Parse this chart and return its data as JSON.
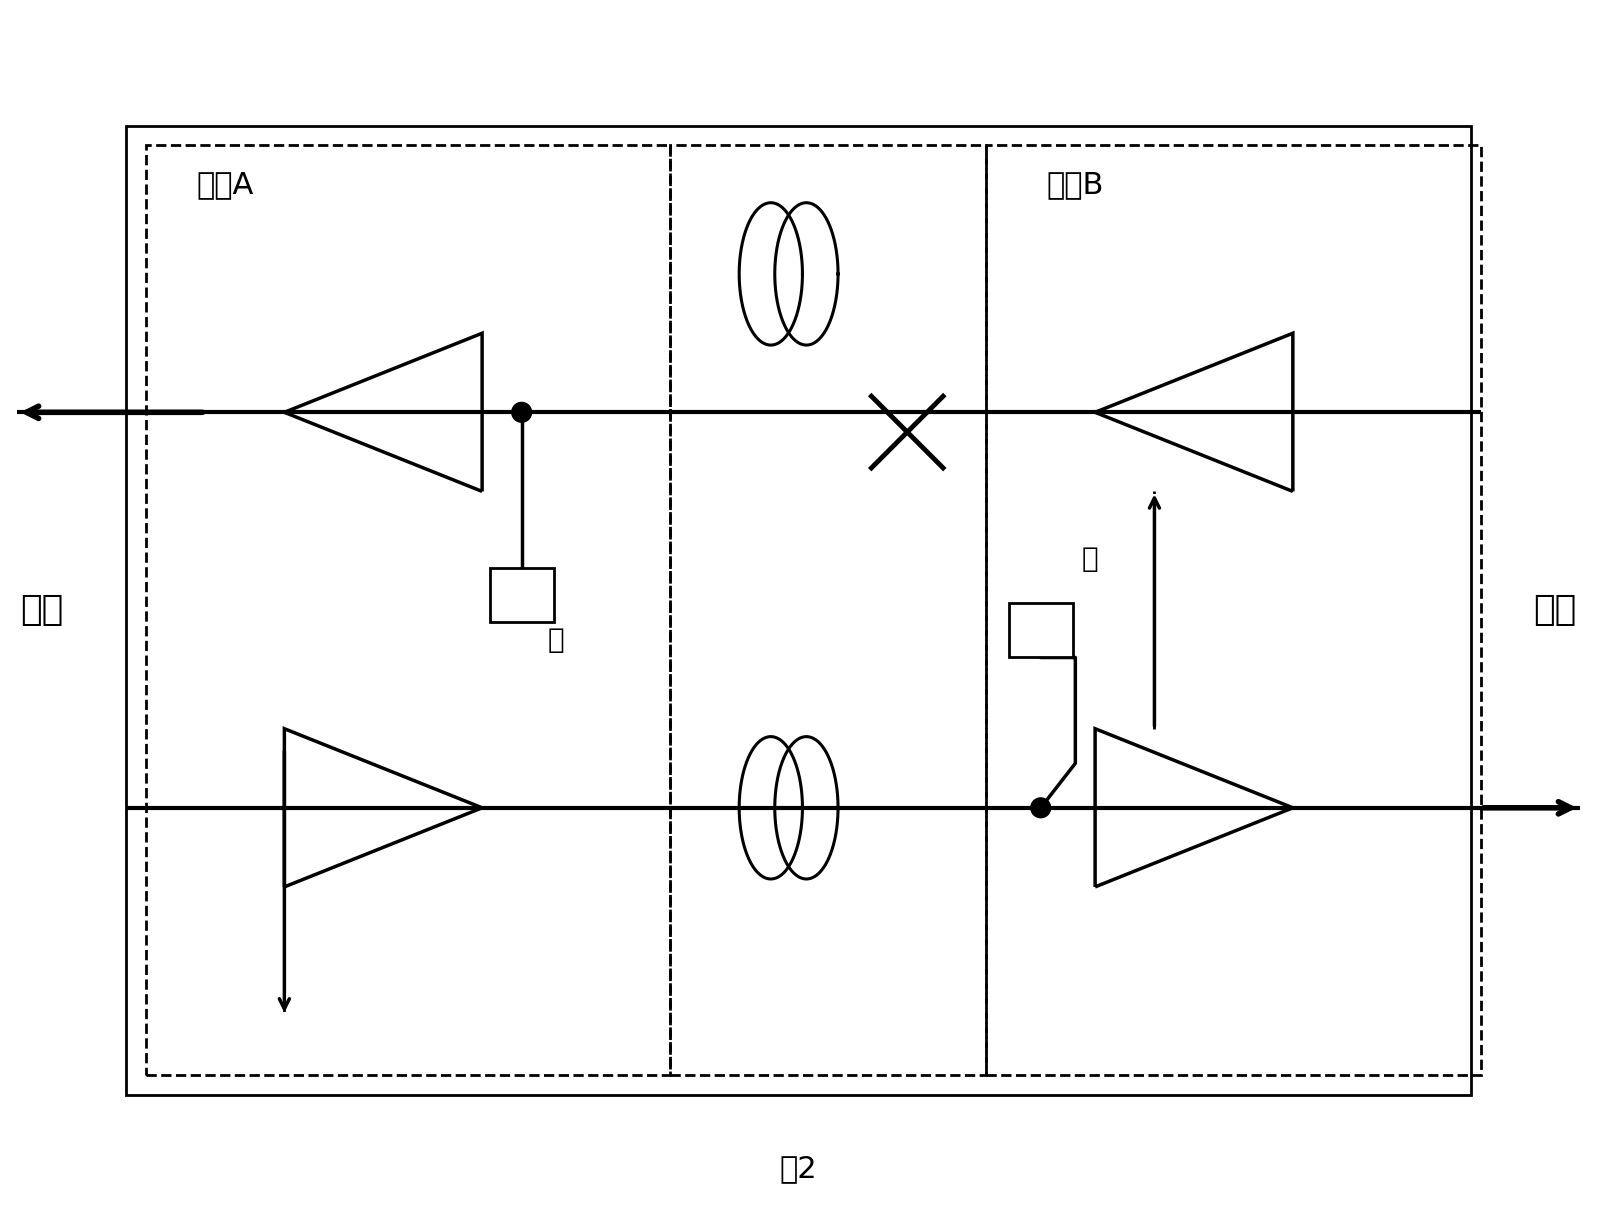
{
  "west_label": "西向",
  "east_label": "东向",
  "node_a_label": "节点A",
  "node_b_label": "节点B",
  "pump_label": "泵",
  "fig_label": "图2",
  "bg_color": "#ffffff",
  "line_color": "#000000"
}
